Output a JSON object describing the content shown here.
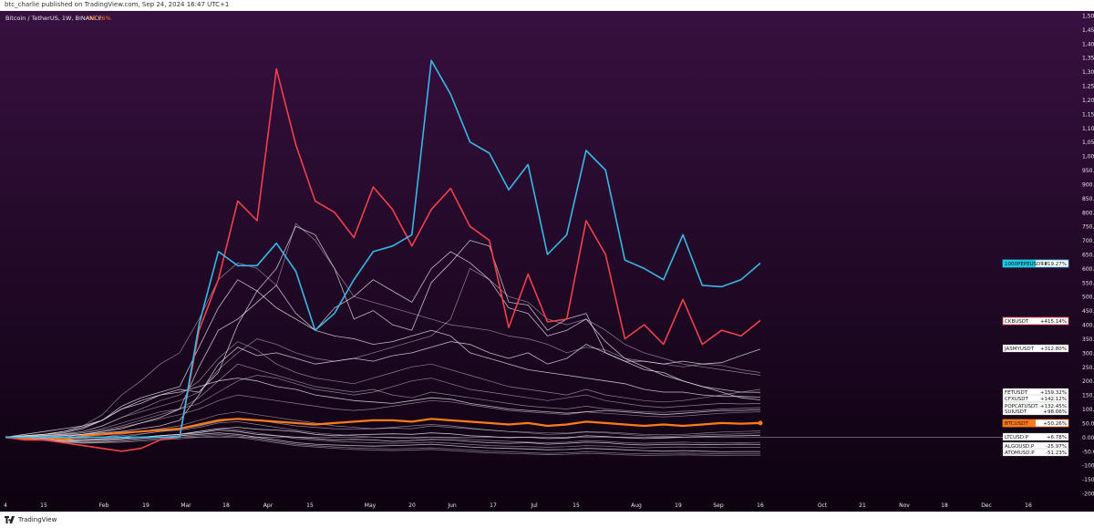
{
  "header": {
    "published": "btc_charlie published on TradingView.com, Sep 24, 2024 16:47 UTC+1"
  },
  "footer": {
    "brand": "TradingView"
  },
  "colors": {
    "bg_top": "#37103f",
    "bg_bottom": "#0d0210",
    "blue": "#3ab7e6",
    "red": "#f0414b",
    "orange": "#ff7a1a",
    "white": "#e9e6ec"
  },
  "chart_data": {
    "type": "line",
    "title": "Bitcoin / TetherUS, 1W, BINANCE",
    "title_value": "50.26%",
    "x_ticks": [
      "4",
      "15",
      "Feb",
      "19",
      "Mar",
      "18",
      "Apr",
      "15",
      "May",
      "20",
      "Jun",
      "17",
      "Jul",
      "15",
      "Aug",
      "19",
      "Sep",
      "16",
      "Oct",
      "21",
      "Nov",
      "18",
      "Dec",
      "16"
    ],
    "y_ticks": [
      "1,500.00%",
      "1,450.00%",
      "1,400.00%",
      "1,350.00%",
      "1,300.00%",
      "1,250.00%",
      "1,200.00%",
      "1,150.00%",
      "1,100.00%",
      "1,050.00%",
      "1,000.00%",
      "950.00%",
      "900.00%",
      "850.00%",
      "800.00%",
      "750.00%",
      "700.00%",
      "650.00%",
      "600.00%",
      "550.00%",
      "500.00%",
      "450.00%",
      "400.00%",
      "350.00%",
      "300.00%",
      "250.00%",
      "200.00%",
      "150.00%",
      "100.00%",
      "50.00%",
      "0.00%",
      "-50.00%",
      "-100.00%",
      "-150.00%",
      "-200.00%"
    ],
    "ylim": [
      -200,
      1500
    ],
    "series": [
      {
        "name": "1000PEPEUSDT.P",
        "label": "1000PEPEUSDT.P",
        "value": "+619.27%",
        "color": "#3ab7e6",
        "values": [
          0,
          0,
          0,
          0,
          0,
          0,
          0,
          0,
          0,
          0,
          400,
          660,
          610,
          610,
          690,
          590,
          380,
          440,
          560,
          660,
          680,
          720,
          1340,
          1220,
          1050,
          1010,
          880,
          970,
          650,
          720,
          1020,
          950,
          630,
          600,
          560,
          720,
          540,
          535,
          560,
          619
        ]
      },
      {
        "name": "CKBUSDT",
        "label": "CKBUSDT",
        "value": "+415.14%",
        "color": "#f0414b",
        "values": [
          0,
          -10,
          -10,
          -20,
          -30,
          -40,
          -50,
          -40,
          -10,
          0,
          380,
          560,
          840,
          770,
          1310,
          1040,
          840,
          800,
          710,
          890,
          810,
          680,
          810,
          885,
          750,
          700,
          390,
          580,
          410,
          420,
          770,
          650,
          350,
          400,
          330,
          490,
          330,
          380,
          360,
          415
        ]
      },
      {
        "name": "JASMYUSDT",
        "label": "JASMYUSDT",
        "value": "+312.80%",
        "color": "#e9e6ec",
        "values": [
          0,
          0,
          0,
          0,
          10,
          15,
          20,
          30,
          40,
          60,
          150,
          260,
          320,
          290,
          300,
          280,
          260,
          270,
          280,
          270,
          290,
          300,
          320,
          340,
          330,
          300,
          280,
          300,
          260,
          280,
          330,
          300,
          270,
          270,
          260,
          270,
          260,
          265,
          290,
          312.8
        ]
      },
      {
        "name": "FETUSDT",
        "label": "FETUSDT",
        "value": "+159.32%",
        "color": "#e9e6ec",
        "values": [
          0,
          5,
          10,
          15,
          30,
          60,
          100,
          120,
          150,
          170,
          160,
          230,
          400,
          520,
          600,
          750,
          720,
          600,
          420,
          450,
          400,
          380,
          550,
          620,
          700,
          680,
          480,
          470,
          380,
          420,
          440,
          300,
          270,
          240,
          230,
          200,
          180,
          170,
          160,
          159.32
        ]
      },
      {
        "name": "CFXUSDT",
        "label": "CFXUSDT",
        "value": "+142.12%",
        "color": "#e9e6ec",
        "values": [
          0,
          10,
          20,
          30,
          40,
          60,
          110,
          140,
          160,
          180,
          320,
          460,
          560,
          520,
          460,
          420,
          380,
          360,
          350,
          330,
          340,
          360,
          380,
          360,
          300,
          280,
          260,
          240,
          230,
          220,
          210,
          200,
          190,
          170,
          160,
          160,
          150,
          145,
          145,
          142.12
        ]
      },
      {
        "name": "POPCATUSDT",
        "label": "POPCATUSDT",
        "value": "+132.45%",
        "color": "#e9e6ec",
        "values": [
          0,
          0,
          0,
          5,
          10,
          20,
          30,
          50,
          70,
          100,
          250,
          380,
          420,
          480,
          540,
          440,
          380,
          460,
          500,
          560,
          520,
          480,
          600,
          660,
          620,
          560,
          460,
          440,
          360,
          380,
          420,
          340,
          280,
          250,
          220,
          200,
          180,
          160,
          140,
          132.45
        ]
      },
      {
        "name": "SUIUSDT",
        "label": "SUIUSDT",
        "value": "+98.06%",
        "color": "#e9e6ec",
        "values": [
          0,
          5,
          10,
          20,
          35,
          60,
          100,
          130,
          150,
          160,
          180,
          200,
          210,
          200,
          180,
          170,
          150,
          140,
          130,
          125,
          120,
          130,
          140,
          135,
          120,
          110,
          100,
          95,
          90,
          85,
          90,
          95,
          90,
          85,
          80,
          85,
          90,
          95,
          95,
          98.06
        ]
      },
      {
        "name": "BTCUSDT",
        "label": "BTCUSDT",
        "value": "+50.26%",
        "color": "#ff7a1a",
        "values": [
          0,
          -5,
          0,
          -10,
          5,
          10,
          15,
          20,
          25,
          30,
          45,
          60,
          65,
          60,
          55,
          50,
          45,
          50,
          55,
          60,
          60,
          55,
          65,
          60,
          55,
          50,
          45,
          50,
          40,
          45,
          55,
          50,
          45,
          40,
          45,
          40,
          45,
          50,
          48,
          50.26
        ]
      },
      {
        "name": "LTCUSD.P",
        "label": "LTCUSD.P",
        "value": "+6.78%",
        "color": "#e9e6ec",
        "values": [
          0,
          -2,
          -5,
          -10,
          -12,
          -8,
          -5,
          0,
          5,
          10,
          20,
          30,
          35,
          28,
          25,
          20,
          10,
          5,
          8,
          10,
          12,
          10,
          15,
          12,
          5,
          2,
          -2,
          0,
          -5,
          -3,
          5,
          2,
          -2,
          -5,
          -3,
          0,
          2,
          4,
          5,
          6.78
        ]
      },
      {
        "name": "ALGOUSD.P",
        "label": "ALGOUSD.P",
        "value": "-25.97%",
        "color": "#e9e6ec",
        "values": [
          0,
          -5,
          -10,
          -15,
          -12,
          -10,
          -5,
          0,
          5,
          10,
          15,
          25,
          20,
          10,
          5,
          0,
          -5,
          -10,
          -8,
          -10,
          -15,
          -12,
          -8,
          -10,
          -15,
          -20,
          -22,
          -20,
          -25,
          -22,
          -18,
          -20,
          -25,
          -28,
          -26,
          -25,
          -27,
          -26,
          -25,
          -25.97
        ]
      },
      {
        "name": "ATOMUSD.P",
        "label": "ATOMUSD.P",
        "value": "-51.23%",
        "color": "#e9e6ec",
        "values": [
          0,
          -5,
          -10,
          -15,
          -18,
          -15,
          -10,
          -5,
          0,
          5,
          10,
          15,
          10,
          0,
          -10,
          -20,
          -25,
          -28,
          -30,
          -32,
          -30,
          -28,
          -25,
          -30,
          -35,
          -38,
          -40,
          -42,
          -45,
          -44,
          -40,
          -42,
          -45,
          -48,
          -50,
          -48,
          -50,
          -52,
          -51,
          -51.23
        ]
      }
    ],
    "background_series_values": [
      [
        0,
        5,
        10,
        20,
        40,
        80,
        150,
        200,
        260,
        300,
        420,
        560,
        620,
        600,
        540,
        760,
        700,
        600,
        500,
        480,
        460,
        440,
        420,
        400,
        390,
        380,
        360,
        350,
        330,
        300,
        320,
        310,
        280,
        270,
        260,
        250,
        260,
        255,
        240,
        230
      ],
      [
        0,
        3,
        6,
        10,
        20,
        40,
        70,
        90,
        110,
        130,
        160,
        240,
        300,
        350,
        330,
        300,
        280,
        270,
        280,
        300,
        320,
        340,
        360,
        420,
        600,
        560,
        500,
        480,
        420,
        400,
        420,
        380,
        330,
        300,
        280,
        260,
        250,
        240,
        230,
        220
      ],
      [
        0,
        2,
        5,
        8,
        15,
        30,
        50,
        70,
        90,
        100,
        120,
        160,
        200,
        220,
        210,
        190,
        170,
        160,
        150,
        160,
        180,
        200,
        210,
        190,
        170,
        160,
        150,
        140,
        130,
        140,
        150,
        130,
        120,
        110,
        105,
        110,
        115,
        120,
        118,
        120
      ],
      [
        0,
        0,
        5,
        10,
        15,
        25,
        40,
        60,
        80,
        100,
        140,
        200,
        260,
        240,
        220,
        200,
        180,
        170,
        160,
        170,
        150,
        140,
        160,
        150,
        140,
        130,
        120,
        110,
        105,
        100,
        110,
        100,
        95,
        90,
        88,
        92,
        95,
        100,
        102,
        105
      ],
      [
        0,
        -2,
        -4,
        -6,
        -4,
        0,
        10,
        20,
        30,
        40,
        60,
        80,
        90,
        80,
        70,
        60,
        50,
        40,
        35,
        30,
        32,
        30,
        40,
        35,
        30,
        25,
        20,
        15,
        10,
        12,
        18,
        15,
        10,
        5,
        2,
        5,
        8,
        10,
        12,
        15
      ],
      [
        0,
        -3,
        -6,
        -10,
        -8,
        -5,
        0,
        10,
        20,
        25,
        35,
        50,
        55,
        45,
        35,
        25,
        15,
        10,
        5,
        0,
        -2,
        -5,
        0,
        -3,
        -8,
        -12,
        -15,
        -18,
        -20,
        -18,
        -12,
        -15,
        -20,
        -22,
        -20,
        -18,
        -20,
        -21,
        -20,
        -19
      ],
      [
        0,
        -4,
        -8,
        -12,
        -10,
        -8,
        -5,
        0,
        5,
        10,
        20,
        30,
        25,
        15,
        5,
        -5,
        -10,
        -15,
        -18,
        -20,
        -22,
        -20,
        -18,
        -22,
        -26,
        -30,
        -32,
        -34,
        -36,
        -34,
        -30,
        -32,
        -36,
        -38,
        -36,
        -35,
        -36,
        -37,
        -36,
        -36
      ],
      [
        0,
        -5,
        -10,
        -15,
        -20,
        -18,
        -15,
        -10,
        -5,
        0,
        5,
        10,
        5,
        -5,
        -15,
        -25,
        -30,
        -35,
        -38,
        -40,
        -42,
        -40,
        -38,
        -42,
        -46,
        -50,
        -52,
        -55,
        -58,
        -56,
        -52,
        -55,
        -58,
        -60,
        -58,
        -57,
        -58,
        -59,
        -58,
        -58
      ],
      [
        0,
        -6,
        -12,
        -18,
        -22,
        -20,
        -18,
        -14,
        -10,
        -6,
        0,
        5,
        0,
        -10,
        -20,
        -30,
        -35,
        -40,
        -44,
        -46,
        -48,
        -46,
        -44,
        -48,
        -52,
        -56,
        -58,
        -60,
        -62,
        -61,
        -58,
        -60,
        -63,
        -65,
        -64,
        -63,
        -64,
        -65,
        -64,
        -64
      ],
      [
        0,
        2,
        6,
        12,
        20,
        40,
        70,
        100,
        130,
        150,
        200,
        280,
        340,
        310,
        260,
        230,
        210,
        200,
        190,
        210,
        230,
        250,
        260,
        240,
        220,
        200,
        180,
        170,
        160,
        150,
        170,
        150,
        140,
        130,
        125,
        130,
        140,
        150,
        160,
        170
      ],
      [
        0,
        1,
        3,
        6,
        10,
        20,
        35,
        50,
        65,
        80,
        100,
        130,
        150,
        140,
        130,
        120,
        110,
        100,
        95,
        100,
        110,
        120,
        130,
        125,
        115,
        105,
        95,
        90,
        85,
        80,
        90,
        85,
        80,
        75,
        72,
        75,
        80,
        85,
        88,
        90
      ],
      [
        0,
        -1,
        -2,
        -4,
        -2,
        0,
        5,
        12,
        20,
        28,
        40,
        55,
        65,
        60,
        50,
        40,
        35,
        30,
        28,
        30,
        35,
        40,
        45,
        40,
        32,
        25,
        20,
        18,
        15,
        14,
        20,
        18,
        14,
        10,
        8,
        10,
        14,
        18,
        20,
        22
      ]
    ],
    "hline_value": 0
  }
}
